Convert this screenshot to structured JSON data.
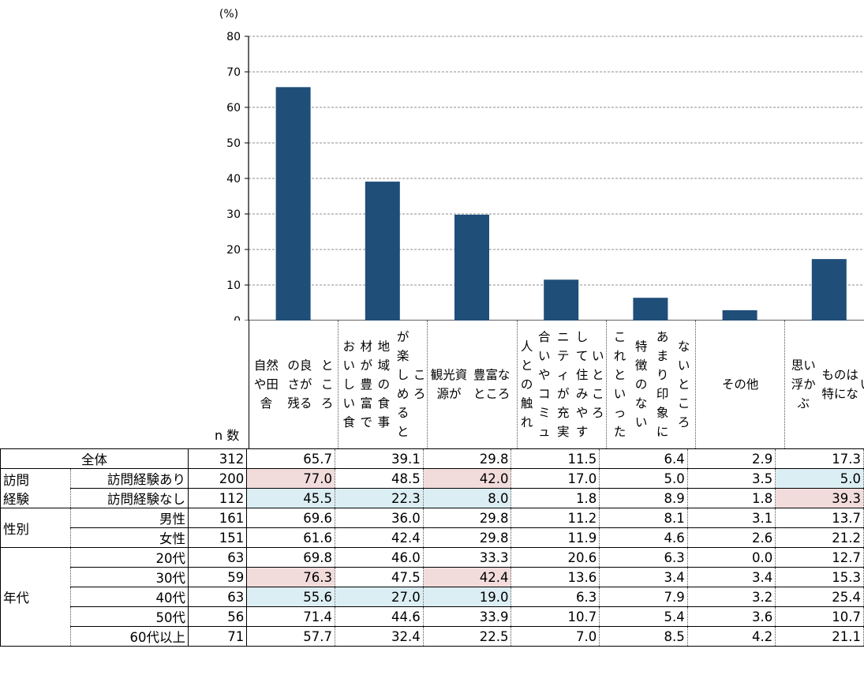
{
  "colors": {
    "bar": "#1f4e79",
    "high": "#f2dcdb",
    "low": "#dbeef4"
  },
  "chart_data": {
    "type": "bar",
    "title": "",
    "xlabel": "",
    "ylabel": "(%)",
    "ylim": [
      0,
      80
    ],
    "yticks": [
      0,
      10,
      20,
      30,
      40,
      50,
      60,
      70,
      80
    ],
    "categories": [
      "自然や田舎の良さが残るところ",
      "おいしい食材が豊富で地域の食事が楽しめるところ",
      "観光資源が豊富なところ",
      "人との触れ合いやコミュニティが充実して住みやすいところ",
      "これといった特徴のないあまり印象にないところ",
      "その他",
      "思い浮かぶものは特にない"
    ],
    "category_label_lines": [
      [
        "自然や田舎",
        "の良さが残る",
        "ところ"
      ],
      [
        "おいしい食",
        "材が豊富で",
        "地域の食事",
        "が楽しめると",
        "ころ"
      ],
      [
        "観光資源が",
        "豊富なところ"
      ],
      [
        "人との触れ",
        "合いやコミュ",
        "ニティが充実",
        "して住みやす",
        "いところ"
      ],
      [
        "これといった",
        "特徴のない",
        "あまり印象に",
        "ないところ"
      ],
      [
        "その他"
      ],
      [
        "思い浮かぶ",
        "ものは特にな",
        "い"
      ]
    ],
    "values": [
      65.7,
      39.1,
      29.8,
      11.5,
      6.4,
      2.9,
      17.3
    ]
  },
  "table": {
    "n_header": "n 数",
    "total": {
      "label": "全体",
      "n": "312",
      "values": [
        "65.7",
        "39.1",
        "29.8",
        "11.5",
        "6.4",
        "2.9",
        "17.3"
      ]
    },
    "groups": [
      {
        "label": "訪問経験",
        "label_lines": [
          "訪問",
          "経験"
        ],
        "rows": [
          {
            "label": "訪問経験あり",
            "n": "200",
            "values": [
              "77.0",
              "48.5",
              "42.0",
              "17.0",
              "5.0",
              "3.5",
              "5.0"
            ],
            "hl": [
              "high",
              "",
              "high",
              "",
              "",
              "",
              "low"
            ]
          },
          {
            "label": "訪問経験なし",
            "n": "112",
            "values": [
              "45.5",
              "22.3",
              "8.0",
              "1.8",
              "8.9",
              "1.8",
              "39.3"
            ],
            "hl": [
              "low",
              "low",
              "low",
              "",
              "",
              "",
              "high"
            ]
          }
        ]
      },
      {
        "label": "性別",
        "label_lines": [
          "性別"
        ],
        "rows": [
          {
            "label": "男性",
            "n": "161",
            "values": [
              "69.6",
              "36.0",
              "29.8",
              "11.2",
              "8.1",
              "3.1",
              "13.7"
            ],
            "hl": [
              "",
              "",
              "",
              "",
              "",
              "",
              ""
            ]
          },
          {
            "label": "女性",
            "n": "151",
            "values": [
              "61.6",
              "42.4",
              "29.8",
              "11.9",
              "4.6",
              "2.6",
              "21.2"
            ],
            "hl": [
              "",
              "",
              "",
              "",
              "",
              "",
              ""
            ]
          }
        ]
      },
      {
        "label": "年代",
        "label_lines": [
          "年代"
        ],
        "rows": [
          {
            "label": "20代",
            "n": "63",
            "values": [
              "69.8",
              "46.0",
              "33.3",
              "20.6",
              "6.3",
              "0.0",
              "12.7"
            ],
            "hl": [
              "",
              "",
              "",
              "",
              "",
              "",
              ""
            ]
          },
          {
            "label": "30代",
            "n": "59",
            "values": [
              "76.3",
              "47.5",
              "42.4",
              "13.6",
              "3.4",
              "3.4",
              "15.3"
            ],
            "hl": [
              "high",
              "",
              "high",
              "",
              "",
              "",
              ""
            ]
          },
          {
            "label": "40代",
            "n": "63",
            "values": [
              "55.6",
              "27.0",
              "19.0",
              "6.3",
              "7.9",
              "3.2",
              "25.4"
            ],
            "hl": [
              "low",
              "low",
              "low",
              "",
              "",
              "",
              ""
            ]
          },
          {
            "label": "50代",
            "n": "56",
            "values": [
              "71.4",
              "44.6",
              "33.9",
              "10.7",
              "5.4",
              "3.6",
              "10.7"
            ],
            "hl": [
              "",
              "",
              "",
              "",
              "",
              "",
              ""
            ]
          },
          {
            "label": "60代以上",
            "n": "71",
            "values": [
              "57.7",
              "32.4",
              "22.5",
              "7.0",
              "8.5",
              "4.2",
              "21.1"
            ],
            "hl": [
              "",
              "",
              "",
              "",
              "",
              "",
              ""
            ]
          }
        ]
      }
    ]
  }
}
